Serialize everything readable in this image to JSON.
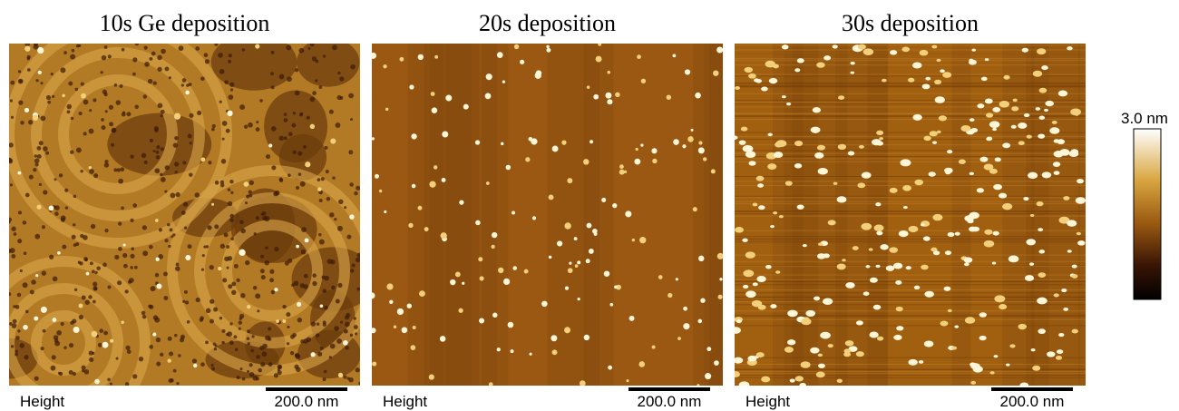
{
  "panels": [
    {
      "title": "10s Ge deposition",
      "footer_left": "Height",
      "scale_bar": "200.0 nm"
    },
    {
      "title": "20s deposition",
      "footer_left": "Height",
      "scale_bar": "200.0 nm"
    },
    {
      "title": "30s deposition",
      "footer_left": "Height",
      "scale_bar": "200.0 nm"
    }
  ],
  "colorbar": {
    "label": "3.0 nm"
  }
}
